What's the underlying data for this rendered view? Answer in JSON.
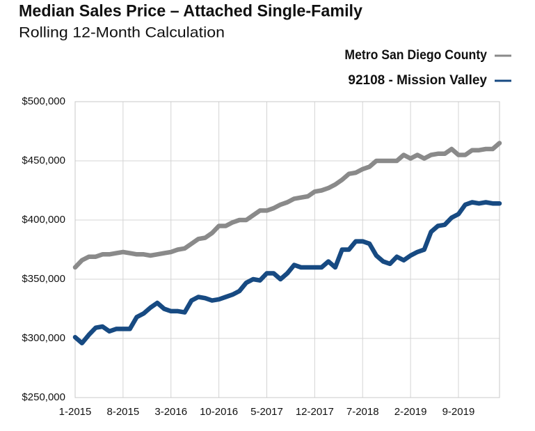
{
  "chart_data": {
    "type": "line",
    "title": "Median Sales Price – Attached Single-Family",
    "subtitle": "Rolling 12-Month Calculation",
    "categories": [
      "1-2015",
      null,
      null,
      null,
      null,
      null,
      null,
      "8-2015",
      null,
      null,
      null,
      null,
      null,
      null,
      "3-2016",
      null,
      null,
      null,
      null,
      null,
      null,
      "10-2016",
      null,
      null,
      null,
      null,
      null,
      null,
      "5-2017",
      null,
      null,
      null,
      null,
      null,
      null,
      "12-2017",
      null,
      null,
      null,
      null,
      null,
      null,
      "7-2018",
      null,
      null,
      null,
      null,
      null,
      null,
      "2-2019",
      null,
      null,
      null,
      null,
      null,
      null,
      "9-2019",
      null,
      null,
      null,
      null,
      null,
      null
    ],
    "series": [
      {
        "name": "Metro San Diego County",
        "color": "#8a8a8a",
        "values": [
          360000,
          366000,
          369000,
          369000,
          371000,
          371000,
          372000,
          373000,
          372000,
          371000,
          371000,
          370000,
          371000,
          372000,
          373000,
          375000,
          376000,
          380000,
          384000,
          385000,
          389000,
          395000,
          395000,
          398000,
          400000,
          400000,
          404000,
          408000,
          408000,
          410000,
          413000,
          415000,
          418000,
          419000,
          420000,
          424000,
          425000,
          427000,
          430000,
          434000,
          439000,
          440000,
          443000,
          445000,
          450000,
          450000,
          450000,
          450000,
          455000,
          452000,
          455000,
          452000,
          455000,
          456000,
          456000,
          460000,
          455000,
          455000,
          459000,
          459000,
          460000,
          460000,
          465000
        ]
      },
      {
        "name": "92108 - Mission Valley",
        "color": "#174a82",
        "values": [
          301000,
          296000,
          303000,
          309000,
          310000,
          306000,
          308000,
          308000,
          308000,
          318000,
          321000,
          326000,
          330000,
          325000,
          323000,
          323000,
          322000,
          332000,
          335000,
          334000,
          332000,
          333000,
          335000,
          337000,
          340000,
          347000,
          350000,
          349000,
          355000,
          355000,
          350000,
          355000,
          362000,
          360000,
          360000,
          360000,
          360000,
          365000,
          360000,
          375000,
          375000,
          382000,
          382000,
          380000,
          370000,
          365000,
          363000,
          369000,
          366000,
          370000,
          373000,
          375000,
          390000,
          395000,
          396000,
          402000,
          405000,
          413000,
          415000,
          414000,
          415000,
          414000,
          414000
        ]
      }
    ],
    "ylim": [
      250000,
      500000
    ],
    "yticks": [
      {
        "value": 250000,
        "label": "$250,000"
      },
      {
        "value": 300000,
        "label": "$300,000"
      },
      {
        "value": 350000,
        "label": "$350,000"
      },
      {
        "value": 400000,
        "label": "$400,000"
      },
      {
        "value": 450000,
        "label": "$450,000"
      },
      {
        "value": 500000,
        "label": "$500,000"
      }
    ],
    "grid": true,
    "legend": "top-right"
  }
}
